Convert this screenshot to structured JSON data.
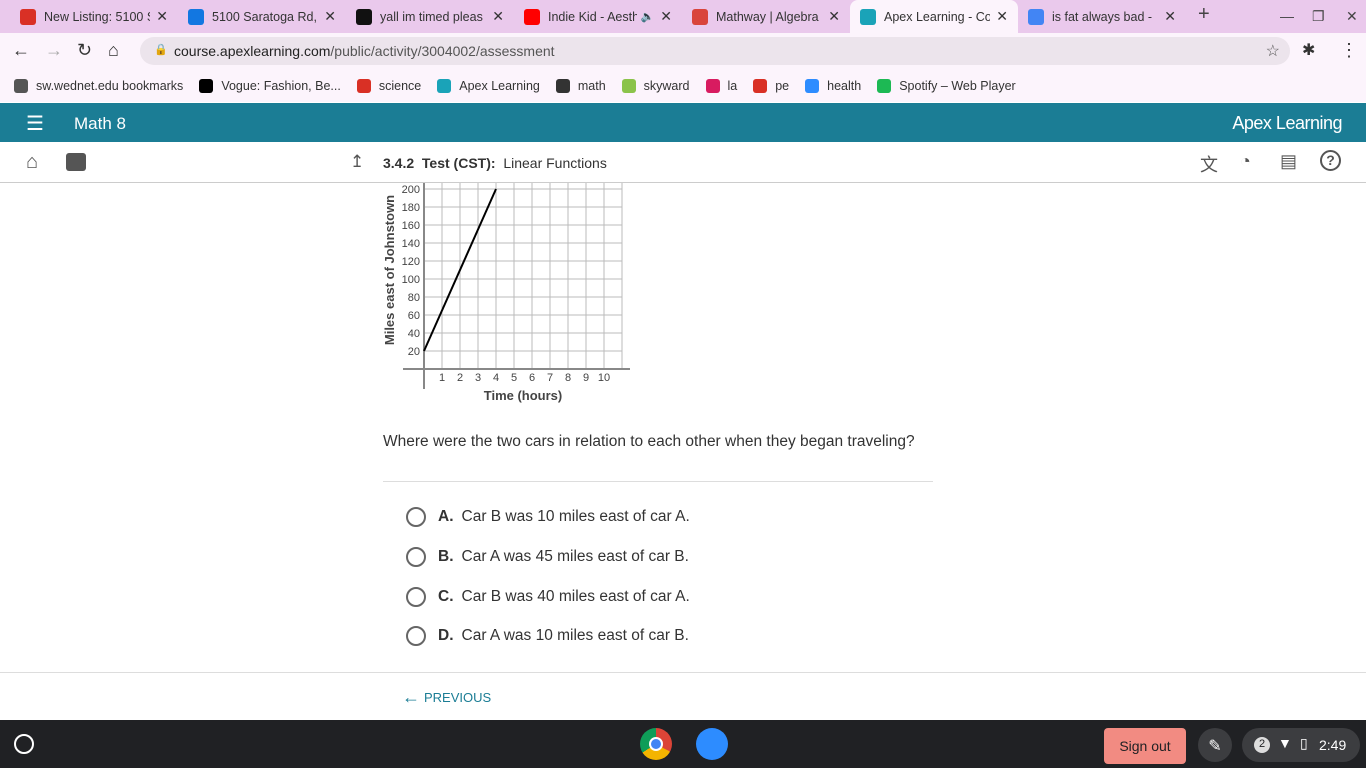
{
  "browser": {
    "tabs": [
      {
        "title": "New Listing: 5100 S",
        "icon": "gmail-icon",
        "color": "#d93025"
      },
      {
        "title": "5100 Saratoga Rd,",
        "icon": "zillow-icon",
        "color": "#1277e1"
      },
      {
        "title": "yall im timed pleas",
        "icon": "brainly-icon",
        "color": "#111111"
      },
      {
        "title": "Indie Kid - Aesthe",
        "icon": "youtube-icon",
        "color": "#ff0000"
      },
      {
        "title": "Mathway | Algebra",
        "icon": "mathway-icon",
        "color": "#d9443b"
      },
      {
        "title": "Apex Learning - Co",
        "icon": "apex-icon",
        "color": "#1aa3b8"
      },
      {
        "title": "is fat always bad -",
        "icon": "google-icon",
        "color": "#4285f4"
      }
    ],
    "url_host": "course.apexlearning.com",
    "url_path": "/public/activity/3004002/assessment",
    "bookmarks": [
      {
        "label": "sw.wednet.edu bookmarks",
        "color": "#555"
      },
      {
        "label": "Vogue: Fashion, Be...",
        "color": "#000"
      },
      {
        "label": "science",
        "color": "#d93025"
      },
      {
        "label": "Apex Learning",
        "color": "#1aa3b8"
      },
      {
        "label": "math",
        "color": "#333"
      },
      {
        "label": "skyward",
        "color": "#8bc34a"
      },
      {
        "label": "la",
        "color": "#d81b60"
      },
      {
        "label": "pe",
        "color": "#d93025"
      },
      {
        "label": "health",
        "color": "#2d8cff"
      },
      {
        "label": "Spotify – Web Player",
        "color": "#1db954"
      }
    ]
  },
  "app": {
    "course": "Math 8",
    "brand": "Apex Learning",
    "lesson_num": "3.4.2",
    "lesson_type": "Test (CST):",
    "lesson_title": "Linear Functions"
  },
  "chart_data": {
    "type": "line",
    "xlabel": "Time (hours)",
    "ylabel": "Miles east of Johnstown",
    "x_ticks": [
      "1",
      "2",
      "3",
      "4",
      "5",
      "6",
      "7",
      "8",
      "9",
      "10"
    ],
    "y_ticks": [
      "20",
      "40",
      "60",
      "80",
      "100",
      "120",
      "140",
      "160",
      "180",
      "200"
    ],
    "xlim": [
      0,
      11
    ],
    "ylim": [
      0,
      200
    ],
    "grid": true,
    "series": [
      {
        "x": [
          0,
          4
        ],
        "y": [
          20,
          200
        ]
      }
    ]
  },
  "question": "Where were the two cars in relation to each other when they began traveling?",
  "options": [
    {
      "letter": "A.",
      "text": "Car B was 10 miles east of car A."
    },
    {
      "letter": "B.",
      "text": "Car A was 45 miles east of car B."
    },
    {
      "letter": "C.",
      "text": "Car B was 40 miles east of car A."
    },
    {
      "letter": "D.",
      "text": "Car A was 10 miles east of car B."
    }
  ],
  "footer": {
    "previous": "PREVIOUS"
  },
  "shelf": {
    "signout": "Sign out",
    "notifications": "2",
    "time": "2:49"
  }
}
